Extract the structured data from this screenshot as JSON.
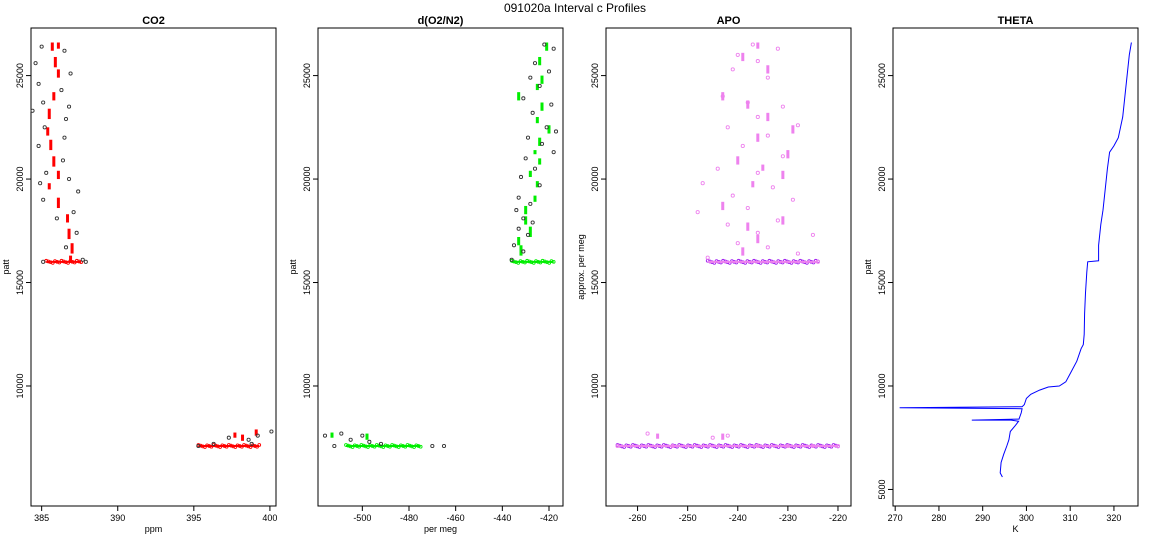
{
  "main_title": "091020a   Interval c Profiles",
  "chart_data": [
    {
      "type": "scatter",
      "title": "CO2",
      "xlabel": "ppm",
      "ylabel": "patt",
      "xlim": [
        384.3,
        400.4
      ],
      "ylim": [
        4200,
        27300
      ],
      "xticks": [
        385,
        390,
        395,
        400
      ],
      "yticks": [
        10000,
        15000,
        20000,
        25000
      ],
      "color": "#ff0000",
      "marker_color": "#ff0000",
      "open_color": "#333333",
      "open_points": [
        [
          385.0,
          26400
        ],
        [
          386.5,
          26200
        ],
        [
          384.6,
          25600
        ],
        [
          386.9,
          25100
        ],
        [
          384.8,
          24600
        ],
        [
          386.3,
          24300
        ],
        [
          385.1,
          23700
        ],
        [
          386.8,
          23500
        ],
        [
          384.4,
          23300
        ],
        [
          386.6,
          22900
        ],
        [
          385.2,
          22500
        ],
        [
          386.5,
          22000
        ],
        [
          384.8,
          21600
        ],
        [
          386.4,
          20900
        ],
        [
          385.3,
          20300
        ],
        [
          386.8,
          20000
        ],
        [
          384.9,
          19800
        ],
        [
          387.4,
          19400
        ],
        [
          385.1,
          19000
        ],
        [
          387.1,
          18400
        ],
        [
          386.0,
          18100
        ],
        [
          387.3,
          17400
        ],
        [
          386.6,
          16700
        ],
        [
          385.1,
          16000
        ],
        [
          387.7,
          16100
        ],
        [
          387.9,
          16000
        ],
        [
          395.3,
          7100
        ],
        [
          396.3,
          7200
        ],
        [
          397.3,
          7500
        ],
        [
          398.6,
          7400
        ],
        [
          399.2,
          7600
        ],
        [
          400.1,
          7800
        ],
        [
          398.8,
          7200
        ]
      ],
      "dashes": [
        [
          385.7,
          26200,
          26600
        ],
        [
          386.1,
          26300,
          26600
        ],
        [
          385.9,
          25400,
          25900
        ],
        [
          386.1,
          24900,
          25300
        ],
        [
          385.8,
          23800,
          24200
        ],
        [
          385.5,
          22900,
          23400
        ],
        [
          385.4,
          22100,
          22500
        ],
        [
          385.6,
          21400,
          21900
        ],
        [
          385.8,
          20600,
          21100
        ],
        [
          386.1,
          20000,
          20400
        ],
        [
          385.5,
          19500,
          19800
        ],
        [
          386.1,
          18600,
          19100
        ],
        [
          386.7,
          17900,
          18300
        ],
        [
          386.8,
          17100,
          17600
        ],
        [
          387.0,
          16400,
          16900
        ],
        [
          386.9,
          16000,
          16300
        ],
        [
          397.7,
          7500,
          7750
        ],
        [
          398.2,
          7350,
          7650
        ],
        [
          399.1,
          7600,
          7900
        ]
      ],
      "clusters": [
        {
          "x0": 385.3,
          "x1": 387.6,
          "y": 16000
        },
        {
          "x0": 395.3,
          "x1": 399.3,
          "y": 7100
        }
      ]
    },
    {
      "type": "scatter",
      "title": "d(O2/N2)",
      "xlabel": "per meg",
      "ylabel": "patt",
      "xlim": [
        -519,
        -414
      ],
      "ylim": [
        4200,
        27300
      ],
      "xticks": [
        -500,
        -480,
        -460,
        -440,
        -420
      ],
      "yticks": [
        10000,
        15000,
        20000,
        25000
      ],
      "color": "#00ee00",
      "marker_color": "#00ee00",
      "open_color": "#333333",
      "open_points": [
        [
          -422,
          26500
        ],
        [
          -418,
          26300
        ],
        [
          -426,
          25600
        ],
        [
          -420,
          25200
        ],
        [
          -428,
          24900
        ],
        [
          -424,
          24500
        ],
        [
          -431,
          23900
        ],
        [
          -419,
          23600
        ],
        [
          -427,
          23200
        ],
        [
          -421,
          22500
        ],
        [
          -417,
          22300
        ],
        [
          -429,
          22000
        ],
        [
          -423,
          21700
        ],
        [
          -418,
          21300
        ],
        [
          -430,
          21000
        ],
        [
          -426,
          20500
        ],
        [
          -432,
          20100
        ],
        [
          -424,
          19700
        ],
        [
          -433,
          19100
        ],
        [
          -428,
          18800
        ],
        [
          -434,
          18500
        ],
        [
          -431,
          18100
        ],
        [
          -427,
          17900
        ],
        [
          -433,
          17600
        ],
        [
          -429,
          17300
        ],
        [
          -435,
          16800
        ],
        [
          -431,
          16500
        ],
        [
          -436,
          16100
        ],
        [
          -516,
          7600
        ],
        [
          -509,
          7700
        ],
        [
          -505,
          7400
        ],
        [
          -500,
          7600
        ],
        [
          -497,
          7300
        ],
        [
          -492,
          7200
        ],
        [
          -470,
          7100
        ],
        [
          -465,
          7100
        ],
        [
          -512,
          7100
        ]
      ],
      "dashes": [
        [
          -421,
          26200,
          26600
        ],
        [
          -424,
          25500,
          25900
        ],
        [
          -423,
          24600,
          25000
        ],
        [
          -425,
          24300,
          24600
        ],
        [
          -433,
          23800,
          24200
        ],
        [
          -423,
          23300,
          23700
        ],
        [
          -425,
          22700,
          23000
        ],
        [
          -420,
          22200,
          22600
        ],
        [
          -424,
          21600,
          22000
        ],
        [
          -426,
          21200,
          21400
        ],
        [
          -424,
          20700,
          21000
        ],
        [
          -428,
          20100,
          20400
        ],
        [
          -425,
          19600,
          19900
        ],
        [
          -426,
          18900,
          19200
        ],
        [
          -430,
          18300,
          18700
        ],
        [
          -430,
          17800,
          18200
        ],
        [
          -428,
          17200,
          17700
        ],
        [
          -433,
          16800,
          17200
        ],
        [
          -432,
          16300,
          16800
        ],
        [
          -498,
          7400,
          7700
        ],
        [
          -513,
          7500,
          7750
        ]
      ],
      "clusters": [
        {
          "x0": -436,
          "x1": -418,
          "y": 16000
        },
        {
          "x0": -507,
          "x1": -475,
          "y": 7100
        }
      ]
    },
    {
      "type": "scatter",
      "title": "APO",
      "xlabel": "",
      "ylabel": "approx. per meg",
      "xlim": [
        -266.3,
        -217.4
      ],
      "ylim": [
        4200,
        27300
      ],
      "xticks": [
        -260,
        -250,
        -240,
        -230,
        -220
      ],
      "yticks": [
        10000,
        15000,
        20000,
        25000
      ],
      "color": "#ee82ee",
      "marker_color": "#a020f0",
      "open_color": "#ee82ee",
      "open_points": [
        [
          -237,
          26500
        ],
        [
          -232,
          26300
        ],
        [
          -240,
          26000
        ],
        [
          -236,
          25700
        ],
        [
          -241,
          25300
        ],
        [
          -234,
          24900
        ],
        [
          -243,
          24000
        ],
        [
          -238,
          23700
        ],
        [
          -231,
          23500
        ],
        [
          -236,
          23000
        ],
        [
          -242,
          22500
        ],
        [
          -228,
          22600
        ],
        [
          -234,
          22100
        ],
        [
          -239,
          21600
        ],
        [
          -231,
          21100
        ],
        [
          -244,
          20500
        ],
        [
          -236,
          20300
        ],
        [
          -247,
          19800
        ],
        [
          -233,
          19600
        ],
        [
          -241,
          19200
        ],
        [
          -229,
          19000
        ],
        [
          -238,
          18600
        ],
        [
          -248,
          18400
        ],
        [
          -232,
          18000
        ],
        [
          -242,
          17800
        ],
        [
          -236,
          17400
        ],
        [
          -225,
          17300
        ],
        [
          -240,
          16900
        ],
        [
          -234,
          16700
        ],
        [
          -246,
          16200
        ],
        [
          -228,
          16400
        ],
        [
          -224,
          16000
        ],
        [
          -264,
          7100
        ],
        [
          -258,
          7700
        ],
        [
          -253,
          7100
        ],
        [
          -245,
          7500
        ],
        [
          -242,
          7600
        ],
        [
          -236,
          7100
        ],
        [
          -230,
          7100
        ],
        [
          -225,
          7100
        ],
        [
          -220,
          7100
        ]
      ],
      "dashes": [
        [
          -236,
          26300,
          26600
        ],
        [
          -239,
          25700,
          26100
        ],
        [
          -234,
          25100,
          25500
        ],
        [
          -243,
          23800,
          24200
        ],
        [
          -238,
          23400,
          23800
        ],
        [
          -234,
          22800,
          23200
        ],
        [
          -229,
          22200,
          22600
        ],
        [
          -236,
          21800,
          22200
        ],
        [
          -230,
          21000,
          21400
        ],
        [
          -240,
          20700,
          21100
        ],
        [
          -235,
          20400,
          20700
        ],
        [
          -231,
          20000,
          20400
        ],
        [
          -237,
          19600,
          19900
        ],
        [
          -243,
          18500,
          18900
        ],
        [
          -231,
          17800,
          18200
        ],
        [
          -238,
          17500,
          17900
        ],
        [
          -236,
          16900,
          17300
        ],
        [
          -239,
          16300,
          16700
        ],
        [
          -243,
          7400,
          7700
        ],
        [
          -256,
          7450,
          7700
        ]
      ],
      "clusters": [
        {
          "x0": -246,
          "x1": -224,
          "y": 16000
        },
        {
          "x0": -264,
          "x1": -220,
          "y": 7100
        }
      ]
    },
    {
      "type": "line",
      "title": "THETA",
      "xlabel": "K",
      "ylabel": "patt",
      "xlim": [
        269.5,
        325.5
      ],
      "ylim": [
        4200,
        27300
      ],
      "xticks": [
        270,
        280,
        290,
        300,
        310,
        320
      ],
      "yticks": [
        5000,
        10000,
        15000,
        20000,
        25000
      ],
      "color": "#0000ff",
      "line": [
        [
          294.5,
          5600
        ],
        [
          294.0,
          5800
        ],
        [
          294.2,
          6300
        ],
        [
          294.8,
          6700
        ],
        [
          295.5,
          7100
        ],
        [
          296.0,
          7400
        ],
        [
          296.3,
          7800
        ],
        [
          297.5,
          8100
        ],
        [
          298.2,
          8300
        ],
        [
          296.5,
          8350
        ],
        [
          287.5,
          8350
        ],
        [
          298.3,
          8400
        ],
        [
          298.8,
          8700
        ],
        [
          299.0,
          8900
        ],
        [
          271.0,
          8950
        ],
        [
          299.0,
          9000
        ],
        [
          299.5,
          9100
        ],
        [
          300.0,
          9400
        ],
        [
          301.0,
          9600
        ],
        [
          303.0,
          9800
        ],
        [
          305.0,
          9950
        ],
        [
          307.5,
          10000
        ],
        [
          309.0,
          10200
        ],
        [
          310.0,
          10600
        ],
        [
          311.5,
          11200
        ],
        [
          312.5,
          11800
        ],
        [
          313.0,
          12000
        ],
        [
          313.2,
          12500
        ],
        [
          313.3,
          13500
        ],
        [
          313.5,
          14500
        ],
        [
          313.8,
          15500
        ],
        [
          314.0,
          16000
        ],
        [
          316.5,
          16050
        ],
        [
          316.5,
          16800
        ],
        [
          317.0,
          17800
        ],
        [
          317.5,
          18500
        ],
        [
          318.0,
          19500
        ],
        [
          318.5,
          20500
        ],
        [
          319.0,
          21300
        ],
        [
          320.0,
          21600
        ],
        [
          321.0,
          22000
        ],
        [
          322.0,
          23000
        ],
        [
          322.5,
          24000
        ],
        [
          323.0,
          25000
        ],
        [
          323.5,
          26000
        ],
        [
          324.0,
          26600
        ]
      ]
    }
  ]
}
